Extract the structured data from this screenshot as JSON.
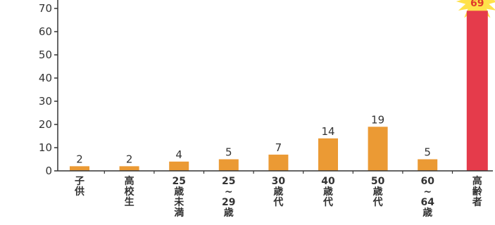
{
  "chart_data": {
    "type": "bar",
    "categories": [
      [
        "子",
        "供"
      ],
      [
        "高",
        "校",
        "生"
      ],
      [
        "25",
        "歳",
        "未",
        "満"
      ],
      [
        "25",
        "~",
        "29",
        "歳"
      ],
      [
        "30",
        "歳",
        "代"
      ],
      [
        "40",
        "歳",
        "代"
      ],
      [
        "50",
        "歳",
        "代"
      ],
      [
        "60",
        "~",
        "64",
        "歳"
      ],
      [
        "高",
        "齢",
        "者"
      ]
    ],
    "values": [
      2,
      2,
      4,
      5,
      7,
      14,
      19,
      5,
      69
    ],
    "y_ticks": [
      0,
      10,
      20,
      30,
      40,
      50,
      60,
      70
    ],
    "ylim": [
      0,
      72
    ],
    "grid": false,
    "highlight_index": 8,
    "colors": {
      "bar": "#eb9a34",
      "highlight_bar": "#e53b4b",
      "highlight_star": "#ffe14a",
      "axis": "#333333"
    }
  }
}
